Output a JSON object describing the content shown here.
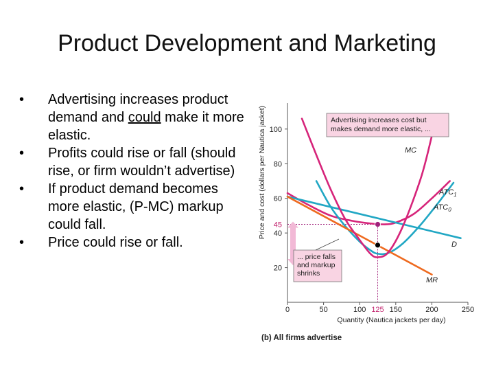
{
  "slide": {
    "title": "Product Development and Marketing",
    "bullets": [
      {
        "parts": [
          {
            "text": "Advertising increases product demand and "
          },
          {
            "text": "could",
            "underline": true
          },
          {
            "text": " make it more elastic."
          }
        ]
      },
      {
        "parts": [
          {
            "text": "Profits could rise or fall (should rise, or firm wouldn’t advertise)"
          }
        ]
      },
      {
        "parts": [
          {
            "text": "If product demand becomes more elastic, (P-MC) markup could fall."
          }
        ]
      },
      {
        "parts": [
          {
            "text": "Price could rise or fall."
          }
        ]
      }
    ],
    "bullet_glyph": "•"
  },
  "chart_data": {
    "type": "line",
    "panel_caption": "(b) All firms advertise",
    "xlabel": "Quantity (Nautica jackets per day)",
    "ylabel": "Price and cost (dollars per Nautica jacket)",
    "xlim": [
      0,
      250
    ],
    "ylim": [
      0,
      115
    ],
    "x_ticks": [
      0,
      50,
      100,
      150,
      200,
      250
    ],
    "y_ticks": [
      20,
      40,
      60,
      80,
      100
    ],
    "highlight_x": {
      "value": 125,
      "label": "125"
    },
    "highlight_y": {
      "value": 45,
      "label": "45"
    },
    "series": [
      {
        "name": "MC",
        "label": "MC",
        "color": "#d6247a",
        "points": [
          [
            20,
            106
          ],
          [
            40,
            85
          ],
          [
            60,
            65
          ],
          [
            80,
            48
          ],
          [
            100,
            36
          ],
          [
            115,
            28
          ],
          [
            125,
            26
          ],
          [
            140,
            29
          ],
          [
            160,
            44
          ],
          [
            185,
            72
          ],
          [
            200,
            96
          ]
        ]
      },
      {
        "name": "ATC1",
        "label": "ATC",
        "sub": "1",
        "color": "#d6247a",
        "points": [
          [
            0,
            63
          ],
          [
            30,
            56
          ],
          [
            60,
            50
          ],
          [
            90,
            47
          ],
          [
            115,
            45.5
          ],
          [
            135,
            45
          ],
          [
            150,
            46
          ],
          [
            175,
            51
          ],
          [
            200,
            60
          ],
          [
            225,
            70
          ]
        ]
      },
      {
        "name": "ATC0",
        "label": "ATC",
        "sub": "0",
        "color": "#21a7c4",
        "points": [
          [
            40,
            70
          ],
          [
            60,
            55
          ],
          [
            80,
            44
          ],
          [
            100,
            35
          ],
          [
            115,
            30
          ],
          [
            125,
            28
          ],
          [
            140,
            28.5
          ],
          [
            160,
            34
          ],
          [
            185,
            45
          ],
          [
            210,
            58
          ],
          [
            230,
            69
          ]
        ]
      },
      {
        "name": "D",
        "label": "D",
        "color": "#21a7c4",
        "points": [
          [
            0,
            61
          ],
          [
            240,
            37
          ]
        ]
      },
      {
        "name": "MR",
        "label": "MR",
        "color": "#ee6a1f",
        "points": [
          [
            0,
            61
          ],
          [
            200,
            16
          ]
        ]
      }
    ],
    "points": [
      {
        "name": "price-point",
        "x": 125,
        "y": 45,
        "color": "#a0207a"
      },
      {
        "name": "mr-mc-intersection",
        "x": 125,
        "y": 33,
        "color": "#000000"
      }
    ],
    "annotations": [
      {
        "name": "top-note",
        "lines": [
          "Advertising increases cost but",
          "makes demand more elastic, ..."
        ]
      },
      {
        "name": "bottom-note",
        "lines": [
          "... price falls",
          "and markup",
          "shrinks"
        ]
      }
    ]
  }
}
